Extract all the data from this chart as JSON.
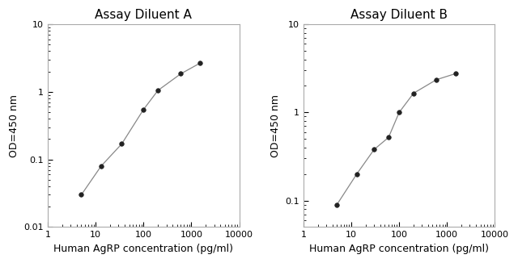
{
  "plot_A": {
    "title": "Assay Diluent A",
    "x": [
      5,
      13,
      35,
      100,
      200,
      600,
      1500
    ],
    "y": [
      0.03,
      0.08,
      0.17,
      0.55,
      1.05,
      1.85,
      2.65
    ],
    "xlim": [
      1,
      10000
    ],
    "ylim": [
      0.01,
      10
    ],
    "yticks": [
      0.01,
      0.1,
      1,
      10
    ],
    "ytick_labels": [
      "0.01",
      "0.1",
      "1",
      "10"
    ],
    "xticks": [
      1,
      10,
      100,
      1000,
      10000
    ],
    "xtick_labels": [
      "1",
      "10",
      "100",
      "1000",
      "10000"
    ],
    "xlabel": "Human AgRP concentration (pg/ml)",
    "ylabel": "OD=450 nm"
  },
  "plot_B": {
    "title": "Assay Diluent B",
    "x": [
      5,
      13,
      30,
      60,
      100,
      200,
      600,
      1500
    ],
    "y": [
      0.09,
      0.2,
      0.38,
      0.52,
      1.0,
      1.65,
      2.35,
      2.75
    ],
    "xlim": [
      1,
      10000
    ],
    "ylim": [
      0.05,
      10
    ],
    "yticks": [
      0.1,
      1,
      10
    ],
    "ytick_labels": [
      "0.1",
      "1",
      "10"
    ],
    "xticks": [
      1,
      10,
      100,
      1000,
      10000
    ],
    "xtick_labels": [
      "1",
      "10",
      "100",
      "1000",
      "10000"
    ],
    "xlabel": "Human AgRP concentration (pg/ml)",
    "ylabel": "OD=450 nm"
  },
  "line_color": "#888888",
  "marker_color": "#222222",
  "marker_size": 4,
  "line_width": 0.9,
  "title_fontsize": 11,
  "label_fontsize": 9,
  "tick_fontsize": 8,
  "background_color": "#ffffff",
  "spine_color": "#aaaaaa"
}
